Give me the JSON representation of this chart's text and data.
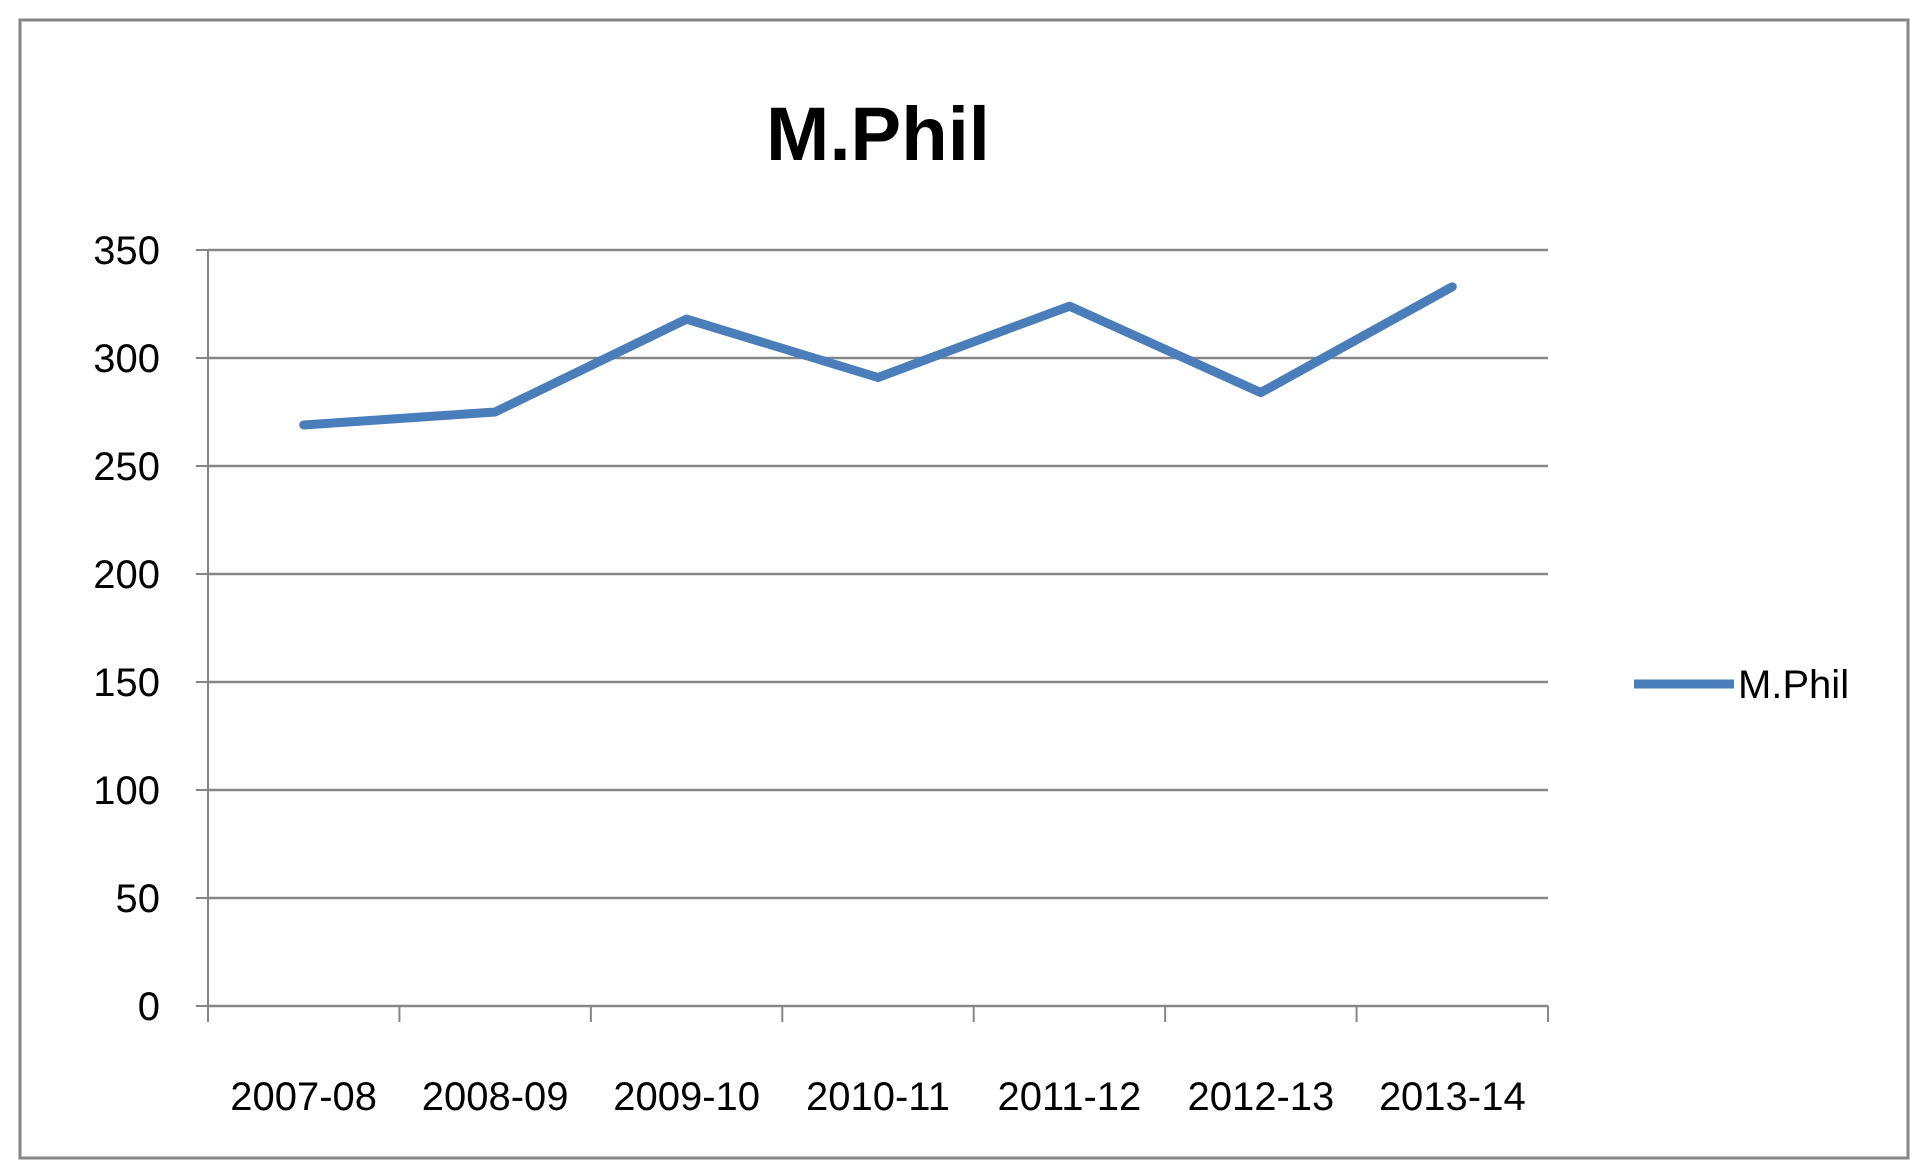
{
  "chart_data": {
    "type": "line",
    "title": "M.Phil",
    "categories": [
      "2007-08",
      "2008-09",
      "2009-10",
      "2010-11",
      "2011-12",
      "2012-13",
      "2013-14"
    ],
    "series": [
      {
        "name": "M.Phil",
        "color": "#4a7ebb",
        "values": [
          269,
          275,
          318,
          291,
          324,
          284,
          333
        ]
      }
    ],
    "ylim": [
      0,
      350
    ],
    "yticks": [
      0,
      50,
      100,
      150,
      200,
      250,
      300,
      350
    ],
    "grid": "y",
    "legend": "right",
    "marker": "none",
    "line_style": "solid"
  }
}
